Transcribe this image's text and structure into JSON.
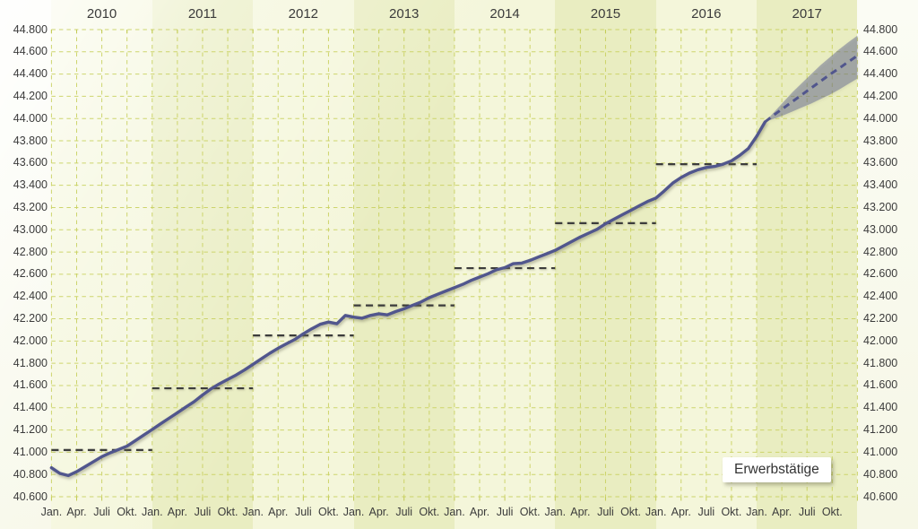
{
  "legend": {
    "label": "Erwerbstätige"
  },
  "colors": {
    "line": "#51568d",
    "forecast_band": "rgba(81,86,141,0.42)",
    "average_line": "#3c3c3c",
    "grid": "#c9d160",
    "tick": "#c3cb55",
    "band_light": "#f4f6da",
    "band_dark": "#e9edc1",
    "text": "#3b3b3b",
    "label_box_bg": "#ffffff"
  },
  "chart_data": {
    "type": "line",
    "title": "Erwerbstätige",
    "legend_position": "bottom-right",
    "grid": true,
    "years": [
      "2010",
      "2011",
      "2012",
      "2013",
      "2014",
      "2015",
      "2016",
      "2017"
    ],
    "quarter_labels": [
      "Jan.",
      "Apr.",
      "Juli",
      "Okt."
    ],
    "ylim": [
      40600,
      44800
    ],
    "y_ticks": [
      {
        "value": 40600,
        "label": "40.600"
      },
      {
        "value": 40800,
        "label": "40.800"
      },
      {
        "value": 41000,
        "label": "41.000"
      },
      {
        "value": 41200,
        "label": "41.200"
      },
      {
        "value": 41400,
        "label": "41.400"
      },
      {
        "value": 41600,
        "label": "41.600"
      },
      {
        "value": 41800,
        "label": "41.800"
      },
      {
        "value": 42000,
        "label": "42.000"
      },
      {
        "value": 42200,
        "label": "42.200"
      },
      {
        "value": 42400,
        "label": "42.400"
      },
      {
        "value": 42600,
        "label": "42.600"
      },
      {
        "value": 42800,
        "label": "42.800"
      },
      {
        "value": 43000,
        "label": "43.000"
      },
      {
        "value": 43200,
        "label": "43.200"
      },
      {
        "value": 43400,
        "label": "43.400"
      },
      {
        "value": 43600,
        "label": "43.600"
      },
      {
        "value": 43800,
        "label": "43.800"
      },
      {
        "value": 44000,
        "label": "44.000"
      },
      {
        "value": 44200,
        "label": "44.200"
      },
      {
        "value": 44400,
        "label": "44.400"
      },
      {
        "value": 44600,
        "label": "44.600"
      },
      {
        "value": 44800,
        "label": "44.800"
      }
    ],
    "series": {
      "actual": {
        "start_month_index": 0,
        "start_label": "Jan. 2010",
        "values": [
          40860,
          40810,
          40790,
          40825,
          40870,
          40915,
          40960,
          40995,
          41025,
          41055,
          41105,
          41155,
          41205,
          41255,
          41305,
          41355,
          41405,
          41455,
          41515,
          41570,
          41615,
          41655,
          41695,
          41740,
          41790,
          41840,
          41890,
          41935,
          41975,
          42015,
          42065,
          42110,
          42150,
          42170,
          42155,
          42230,
          42215,
          42205,
          42230,
          42245,
          42235,
          42265,
          42290,
          42320,
          42350,
          42390,
          42420,
          42450,
          42480,
          42510,
          42545,
          42575,
          42605,
          42640,
          42660,
          42695,
          42700,
          42725,
          42755,
          42785,
          42815,
          42855,
          42895,
          42935,
          42970,
          43005,
          43055,
          43095,
          43135,
          43175,
          43215,
          43255,
          43285,
          43350,
          43420,
          43470,
          43510,
          43540,
          43560,
          43570,
          43590,
          43620,
          43670,
          43730,
          43840,
          43970
        ]
      },
      "forecast": {
        "start_month_index": 85,
        "values": [
          43970,
          44035,
          44095,
          44155,
          44215,
          44275,
          44335,
          44395,
          44450,
          44510,
          44565
        ]
      },
      "forecast_band": {
        "upper": [
          43970,
          44060,
          44150,
          44240,
          44320,
          44400,
          44480,
          44550,
          44620,
          44685,
          44745
        ],
        "lower": [
          43970,
          44000,
          44030,
          44065,
          44100,
          44135,
          44175,
          44215,
          44260,
          44310,
          44360
        ]
      },
      "annual_averages": [
        {
          "year": 2010,
          "value": 41020
        },
        {
          "year": 2011,
          "value": 41575
        },
        {
          "year": 2012,
          "value": 42050
        },
        {
          "year": 2013,
          "value": 42320
        },
        {
          "year": 2014,
          "value": 42655
        },
        {
          "year": 2015,
          "value": 43060
        },
        {
          "year": 2016,
          "value": 43590
        }
      ]
    }
  }
}
